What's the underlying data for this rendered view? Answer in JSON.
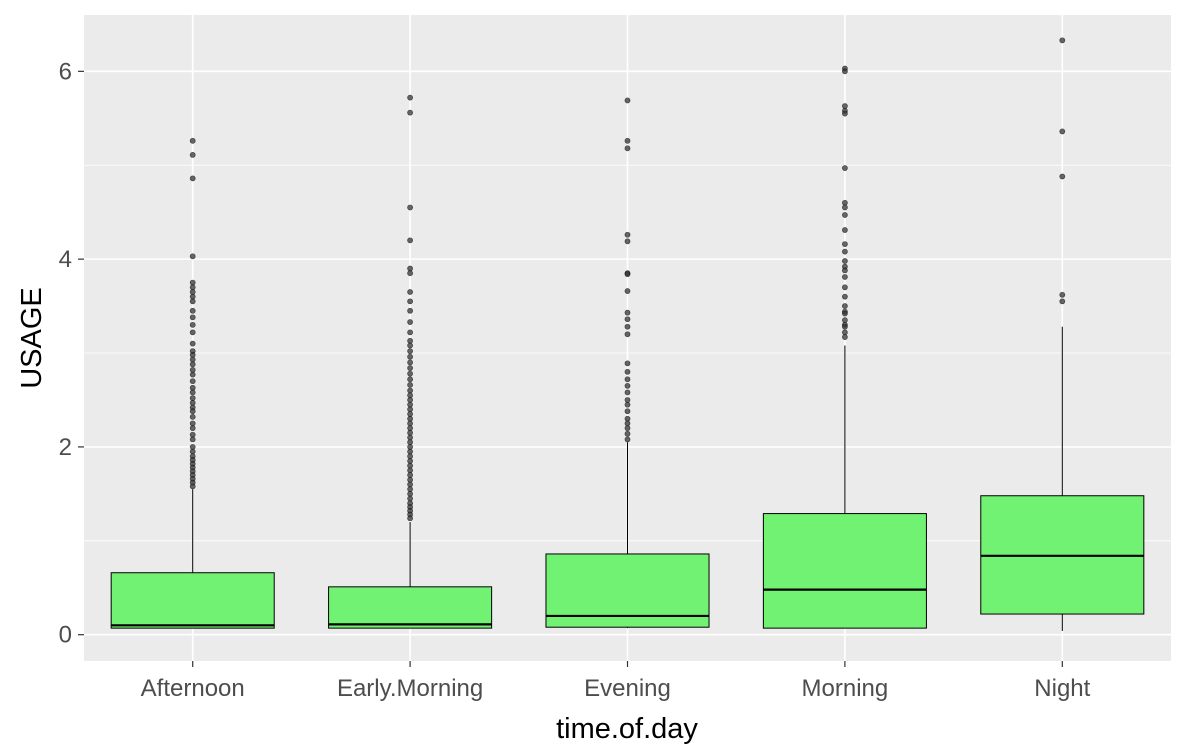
{
  "chart_data": {
    "type": "boxplot",
    "xlabel": "time.of.day",
    "ylabel": "USAGE",
    "ylim": [
      -0.28,
      6.6
    ],
    "yticks": [
      0,
      2,
      4,
      6
    ],
    "ytick_labels": [
      "0",
      "2",
      "4",
      "6"
    ],
    "grid": true,
    "legend": "none",
    "colors": {
      "panel_background": "#ebebeb",
      "grid_line": "#ffffff",
      "box_fill": "#72f272",
      "box_stroke": "#000000",
      "outlier": "#333333",
      "tick_label": "#4d4d4d",
      "axis_title": "#000000"
    },
    "categories": [
      "Afternoon",
      "Early.Morning",
      "Evening",
      "Morning",
      "Night"
    ],
    "boxes": [
      {
        "category": "Afternoon",
        "whisker_low": 0.07,
        "q1": 0.07,
        "median": 0.1,
        "q3": 0.66,
        "whisker_high": 1.55,
        "outliers": [
          5.26,
          5.11,
          4.86,
          4.03,
          3.75,
          3.7,
          3.65,
          3.6,
          3.55,
          3.45,
          3.38,
          3.3,
          3.22,
          3.1,
          3.02,
          2.98,
          2.93,
          2.88,
          2.82,
          2.77,
          2.7,
          2.63,
          2.58,
          2.52,
          2.47,
          2.42,
          2.38,
          2.32,
          2.25,
          2.2,
          2.13,
          2.08,
          2.0,
          1.95,
          1.9,
          1.86,
          1.82,
          1.78,
          1.74,
          1.7,
          1.66,
          1.62,
          1.58
        ]
      },
      {
        "category": "Early.Morning",
        "whisker_low": 0.07,
        "q1": 0.07,
        "median": 0.11,
        "q3": 0.51,
        "whisker_high": 1.2,
        "outliers": [
          5.72,
          5.56,
          4.55,
          4.2,
          3.9,
          3.85,
          3.65,
          3.55,
          3.45,
          3.33,
          3.22,
          3.13,
          3.08,
          3.02,
          2.96,
          2.9,
          2.84,
          2.78,
          2.72,
          2.66,
          2.6,
          2.55,
          2.5,
          2.45,
          2.4,
          2.35,
          2.3,
          2.25,
          2.2,
          2.15,
          2.1,
          2.05,
          2.0,
          1.95,
          1.9,
          1.85,
          1.8,
          1.75,
          1.7,
          1.65,
          1.6,
          1.55,
          1.5,
          1.45,
          1.4,
          1.36,
          1.32,
          1.28,
          1.24
        ]
      },
      {
        "category": "Evening",
        "whisker_low": 0.07,
        "q1": 0.08,
        "median": 0.2,
        "q3": 0.86,
        "whisker_high": 2.05,
        "outliers": [
          5.69,
          5.26,
          5.18,
          4.26,
          4.19,
          3.85,
          3.84,
          3.66,
          3.43,
          3.36,
          3.28,
          3.2,
          2.89,
          2.8,
          2.72,
          2.65,
          2.58,
          2.5,
          2.45,
          2.38,
          2.3,
          2.25,
          2.2,
          2.14,
          2.08
        ]
      },
      {
        "category": "Morning",
        "whisker_low": 0.07,
        "q1": 0.07,
        "median": 0.48,
        "q3": 1.29,
        "whisker_high": 3.08,
        "outliers": [
          6.03,
          6.0,
          5.63,
          5.58,
          5.55,
          4.97,
          4.6,
          4.55,
          4.47,
          4.31,
          4.16,
          4.08,
          3.98,
          3.92,
          3.88,
          3.81,
          3.7,
          3.6,
          3.5,
          3.44,
          3.42,
          3.35,
          3.3,
          3.28,
          3.22,
          3.17
        ]
      },
      {
        "category": "Night",
        "whisker_low": 0.04,
        "q1": 0.22,
        "median": 0.84,
        "q3": 1.48,
        "whisker_high": 3.28,
        "outliers": [
          6.33,
          5.36,
          4.88,
          3.62,
          3.55
        ]
      }
    ]
  }
}
